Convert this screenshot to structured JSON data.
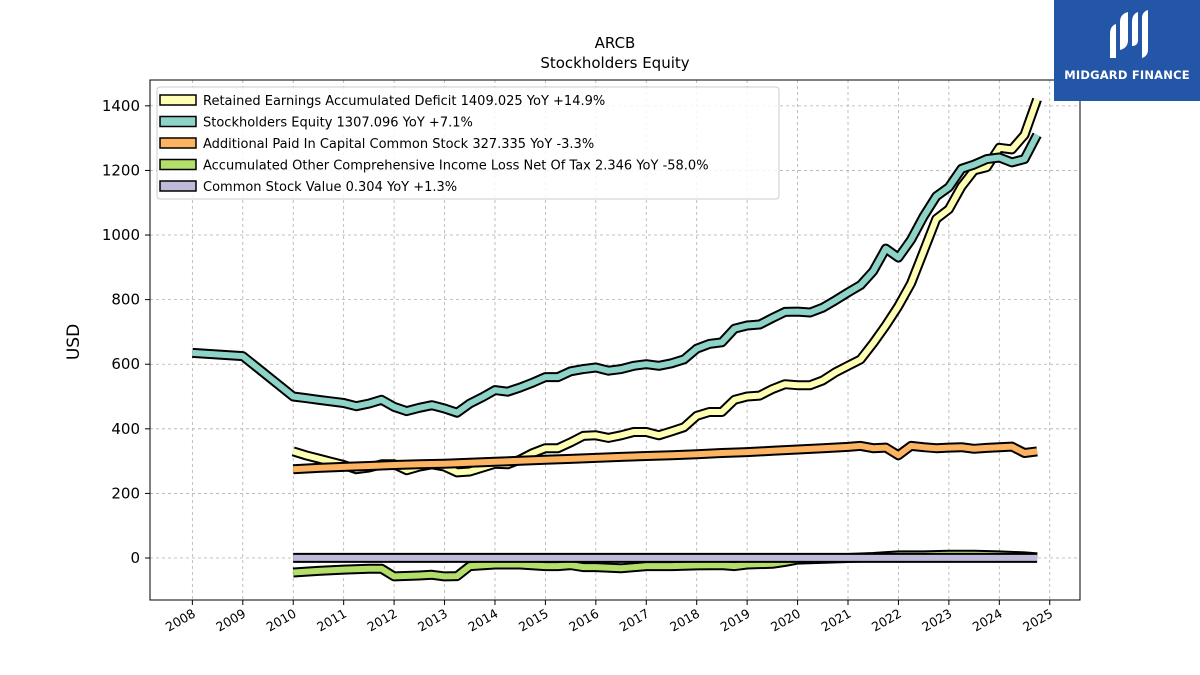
{
  "chart_data": {
    "type": "line",
    "title": "ARCB",
    "subtitle": "Stockholders  Equity",
    "ylabel": "USD",
    "xlabel": "",
    "xlim": [
      2007.16,
      2025.6
    ],
    "ylim": [
      -130,
      1480
    ],
    "yticks": [
      0,
      200,
      400,
      600,
      800,
      1000,
      1200,
      1400
    ],
    "xticks": [
      2008,
      2009,
      2010,
      2011,
      2012,
      2013,
      2014,
      2015,
      2016,
      2017,
      2018,
      2019,
      2020,
      2021,
      2022,
      2023,
      2024,
      2025
    ],
    "grid": true,
    "legend_position": "top-left",
    "series": [
      {
        "name": "Retained Earnings Accumulated Deficit",
        "legend": "Retained Earnings Accumulated Deficit  1409.025 YoY +14.9%",
        "color": "#ffffb3",
        "x": [
          2010.0,
          2010.25,
          2010.5,
          2010.75,
          2011.0,
          2011.25,
          2011.5,
          2011.75,
          2012.0,
          2012.25,
          2012.5,
          2012.75,
          2013.0,
          2013.25,
          2013.5,
          2013.75,
          2014.0,
          2014.25,
          2014.5,
          2014.75,
          2015.0,
          2015.25,
          2015.5,
          2015.75,
          2016.0,
          2016.25,
          2016.5,
          2016.75,
          2017.0,
          2017.25,
          2017.5,
          2017.75,
          2018.0,
          2018.25,
          2018.5,
          2018.75,
          2019.0,
          2019.25,
          2019.5,
          2019.75,
          2020.0,
          2020.25,
          2020.5,
          2020.75,
          2021.0,
          2021.25,
          2021.5,
          2021.75,
          2022.0,
          2022.25,
          2022.5,
          2022.75,
          2023.0,
          2023.25,
          2023.5,
          2023.75,
          2024.0,
          2024.25,
          2024.5,
          2024.75
        ],
        "values": [
          330,
          318,
          308,
          298,
          288,
          275,
          280,
          290,
          290,
          272,
          283,
          290,
          283,
          265,
          268,
          280,
          292,
          290,
          305,
          325,
          340,
          340,
          358,
          378,
          380,
          372,
          380,
          390,
          390,
          380,
          392,
          405,
          440,
          452,
          452,
          490,
          500,
          503,
          523,
          538,
          535,
          535,
          550,
          575,
          595,
          615,
          665,
          720,
          780,
          850,
          950,
          1050,
          1080,
          1150,
          1200,
          1210,
          1270,
          1265,
          1310,
          1420
        ]
      },
      {
        "name": "Stockholders Equity",
        "legend": "Stockholders Equity  1307.096 YoY +7.1%",
        "color": "#8dd3c7",
        "x": [
          2008.0,
          2009.0,
          2010.0,
          2010.25,
          2010.5,
          2010.75,
          2011.0,
          2011.25,
          2011.5,
          2011.75,
          2012.0,
          2012.25,
          2012.5,
          2012.75,
          2013.0,
          2013.25,
          2013.5,
          2013.75,
          2014.0,
          2014.25,
          2014.5,
          2014.75,
          2015.0,
          2015.25,
          2015.5,
          2015.75,
          2016.0,
          2016.25,
          2016.5,
          2016.75,
          2017.0,
          2017.25,
          2017.5,
          2017.75,
          2018.0,
          2018.25,
          2018.5,
          2018.75,
          2019.0,
          2019.25,
          2019.5,
          2019.75,
          2020.0,
          2020.25,
          2020.5,
          2020.75,
          2021.0,
          2021.25,
          2021.5,
          2021.75,
          2022.0,
          2022.25,
          2022.5,
          2022.75,
          2023.0,
          2023.25,
          2023.5,
          2023.75,
          2024.0,
          2024.25,
          2024.5,
          2024.75
        ],
        "values": [
          635,
          625,
          500,
          495,
          490,
          485,
          480,
          470,
          478,
          490,
          468,
          455,
          465,
          473,
          463,
          450,
          478,
          498,
          520,
          515,
          528,
          543,
          560,
          560,
          578,
          585,
          590,
          580,
          585,
          595,
          600,
          595,
          603,
          615,
          648,
          663,
          668,
          710,
          720,
          723,
          743,
          762,
          763,
          760,
          775,
          798,
          822,
          845,
          888,
          958,
          930,
          985,
          1058,
          1120,
          1148,
          1205,
          1218,
          1235,
          1240,
          1225,
          1235,
          1310
        ]
      },
      {
        "name": "Additional Paid In Capital Common Stock",
        "legend": "Additional Paid In Capital Common Stock  327.335 YoY -3.3%",
        "color": "#fdb462",
        "x": [
          2010.0,
          2010.5,
          2011.0,
          2011.5,
          2012.0,
          2012.5,
          2013.0,
          2013.5,
          2014.0,
          2014.5,
          2015.0,
          2015.5,
          2016.0,
          2016.5,
          2017.0,
          2017.5,
          2018.0,
          2018.5,
          2019.0,
          2019.5,
          2020.0,
          2020.5,
          2021.0,
          2021.25,
          2021.5,
          2021.75,
          2022.0,
          2022.25,
          2022.5,
          2022.75,
          2023.0,
          2023.25,
          2023.5,
          2023.75,
          2024.0,
          2024.25,
          2024.5,
          2024.75
        ],
        "values": [
          275,
          279,
          282,
          285,
          288,
          290,
          292,
          295,
          298,
          301,
          304,
          307,
          310,
          313,
          316,
          318,
          321,
          325,
          328,
          332,
          336,
          340,
          344,
          347,
          340,
          342,
          318,
          347,
          343,
          340,
          342,
          343,
          338,
          341,
          343,
          345,
          325,
          330
        ]
      },
      {
        "name": "Accumulated Other Comprehensive Income Loss Net Of Tax",
        "legend": "Accumulated Other Comprehensive Income Loss Net Of Tax  2.346 YoY -58.0%",
        "color": "#b3de69",
        "x": [
          2010.0,
          2010.5,
          2011.0,
          2011.5,
          2011.75,
          2012.0,
          2012.5,
          2012.75,
          2013.0,
          2013.25,
          2013.5,
          2014.0,
          2014.5,
          2015.0,
          2015.25,
          2015.5,
          2015.75,
          2016.0,
          2016.5,
          2017.0,
          2017.5,
          2018.0,
          2018.5,
          2018.75,
          2019.0,
          2019.5,
          2019.75,
          2020.0,
          2021.0,
          2021.5,
          2022.0,
          2022.5,
          2023.0,
          2023.5,
          2024.0,
          2024.5,
          2024.75
        ],
        "values": [
          -45,
          -40,
          -36,
          -33,
          -33,
          -57,
          -54,
          -52,
          -57,
          -56,
          -25,
          -20,
          -20,
          -25,
          -25,
          -22,
          -28,
          -28,
          -32,
          -25,
          -25,
          -23,
          -22,
          -25,
          -20,
          -18,
          -12,
          -5,
          0,
          3,
          8,
          8,
          10,
          10,
          8,
          5,
          2
        ]
      },
      {
        "name": "Common Stock Value",
        "legend": "Common Stock Value  0.304 YoY +1.3%",
        "color": "#bebada",
        "x": [
          2010.0,
          2024.75
        ],
        "values": [
          0.3,
          0.3
        ]
      }
    ]
  },
  "logo": {
    "text": "MIDGARD FINANCE",
    "color": "#2456a8"
  }
}
